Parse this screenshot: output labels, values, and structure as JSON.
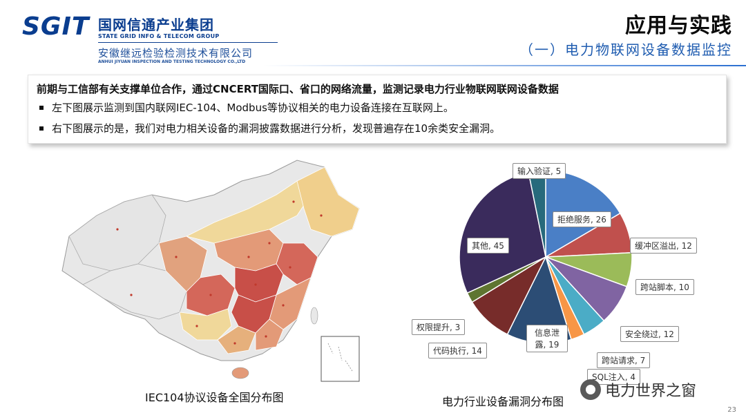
{
  "header": {
    "logo_mark": "SGIT",
    "logo_cn": "国网信通产业集团",
    "logo_en": "STATE GRID INFO & TELECOM GROUP",
    "logo_sub": "安徽继远检验检测技术有限公司",
    "logo_sub_en": "ANHUI JIYUAN INSPECTION AND TESTING TECHNOLOGY CO.,LTD",
    "title": "应用与实践",
    "subtitle": "（一）电力物联网设备数据监控"
  },
  "textbox": {
    "heading": "前期与工信部有关支撑单位合作，通过CNCERT国际口、省口的网络流量，监测记录电力行业物联网联网设备数据",
    "bullets": [
      "左下图展示监测到国内联网IEC-104、Modbus等协议相关的电力设备连接在互联网上。",
      "右下图展示的是，我们对电力相关设备的漏洞披露数据进行分析，发现普遍存在10余类安全漏洞。"
    ]
  },
  "map": {
    "caption": "IEC104协议设备全国分布图"
  },
  "pie": {
    "caption": "电力行业设备漏洞分布图"
  },
  "chart_data": {
    "type": "pie",
    "slices": [
      {
        "label": "拒绝服务, 26",
        "name": "拒绝服务",
        "value": 26,
        "color": "#4a7fc6"
      },
      {
        "label": "缓冲区溢出, 12",
        "name": "缓冲区溢出",
        "value": 12,
        "color": "#c0504d"
      },
      {
        "label": "跨站脚本, 10",
        "name": "跨站脚本",
        "value": 10,
        "color": "#9bbb59"
      },
      {
        "label": "安全绕过, 12",
        "name": "安全绕过",
        "value": 12,
        "color": "#8064a2"
      },
      {
        "label": "跨站请求, 7",
        "name": "跨站请求",
        "value": 7,
        "color": "#4bacc6"
      },
      {
        "label": "SQL注入, 4",
        "name": "SQL注入",
        "value": 4,
        "color": "#f79646"
      },
      {
        "label": "信息泄露, 19",
        "name": "信息泄露",
        "value": 19,
        "color": "#2c4d75"
      },
      {
        "label": "代码执行, 14",
        "name": "代码执行",
        "value": 14,
        "color": "#772c2a"
      },
      {
        "label": "权限提升, 3",
        "name": "权限提升",
        "value": 3,
        "color": "#5f7530"
      },
      {
        "label": "其他, 45",
        "name": "其他",
        "value": 45,
        "color": "#3a2b5c"
      },
      {
        "label": "输入验证, 5",
        "name": "输入验证",
        "value": 5,
        "color": "#276a7c"
      }
    ]
  },
  "watermark": "电力世界之窗",
  "page_number": "23",
  "colors": {
    "brand_blue": "#0a3d8f",
    "subtitle_blue": "#1f5cb0"
  }
}
